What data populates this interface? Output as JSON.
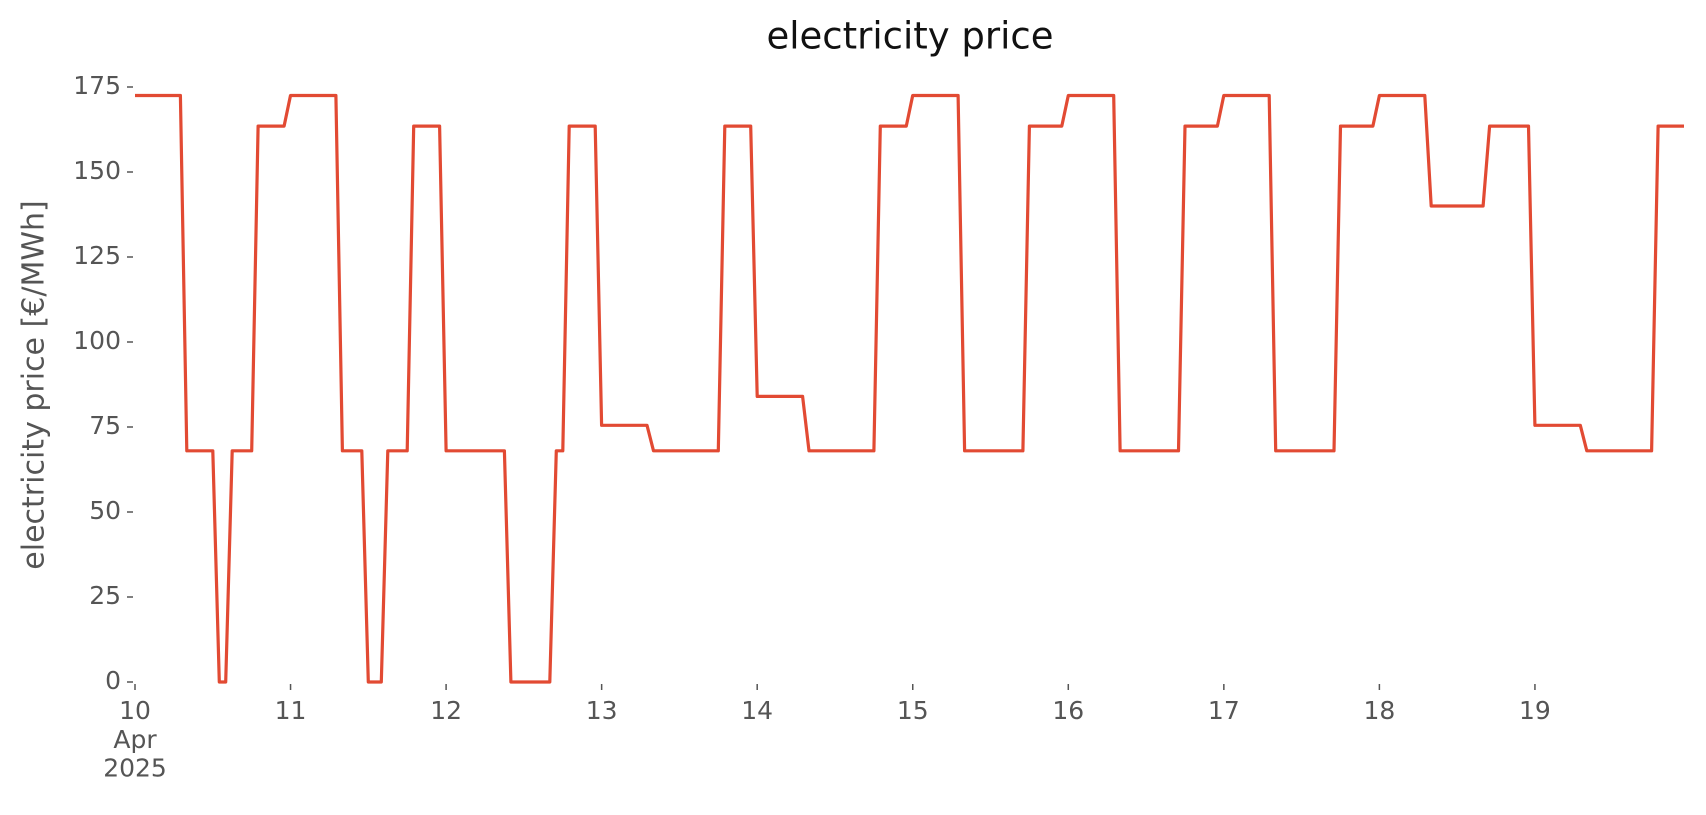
{
  "chart_data": {
    "type": "line",
    "title": "electricity price",
    "ylabel": "electricity price [€/MWh]",
    "color": "#e24a33",
    "x": [
      10,
      10.2917,
      10.3333,
      10.5,
      10.5417,
      10.5833,
      10.625,
      10.75,
      10.7917,
      10.9583,
      11,
      11.2917,
      11.3333,
      11.4583,
      11.5,
      11.5833,
      11.625,
      11.75,
      11.7917,
      11.9583,
      12,
      12.375,
      12.4167,
      12.6667,
      12.7083,
      12.75,
      12.7917,
      12.9583,
      13,
      13.2917,
      13.3333,
      13.75,
      13.7917,
      13.9583,
      14,
      14.2917,
      14.3333,
      14.75,
      14.7917,
      14.9583,
      15,
      15.2917,
      15.3333,
      15.7083,
      15.75,
      15.9583,
      16,
      16.2917,
      16.3333,
      16.7083,
      16.75,
      16.9583,
      17,
      17.2917,
      17.3333,
      17.7083,
      17.75,
      17.9583,
      18,
      18.2917,
      18.3333,
      18.6667,
      18.7083,
      18.9583,
      19,
      19.2917,
      19.3333,
      19.75,
      19.7917,
      19.9583
    ],
    "values": [
      172.5,
      172.5,
      68,
      68,
      0,
      0,
      68,
      68,
      163.5,
      163.5,
      172.5,
      172.5,
      68,
      68,
      0,
      0,
      68,
      68,
      163.5,
      163.5,
      68,
      68,
      0,
      0,
      68,
      68,
      163.5,
      163.5,
      75.5,
      75.5,
      68,
      68,
      163.5,
      163.5,
      84,
      84,
      68,
      68,
      163.5,
      163.5,
      172.5,
      172.5,
      68,
      68,
      163.5,
      163.5,
      172.5,
      172.5,
      68,
      68,
      163.5,
      163.5,
      172.5,
      172.5,
      68,
      68,
      163.5,
      163.5,
      172.5,
      172.5,
      140,
      140,
      163.5,
      163.5,
      75.5,
      75.5,
      68,
      68,
      163.5,
      163.5
    ],
    "xlim": [
      10,
      19.9583
    ],
    "xticks": [
      {
        "value": 10,
        "label": "10\nApr\n2025"
      },
      11,
      12,
      13,
      14,
      15,
      16,
      17,
      18,
      19
    ],
    "ylim": [
      0,
      175
    ],
    "yticks": [
      0,
      25,
      50,
      75,
      100,
      125,
      150,
      175
    ],
    "grid": false
  }
}
